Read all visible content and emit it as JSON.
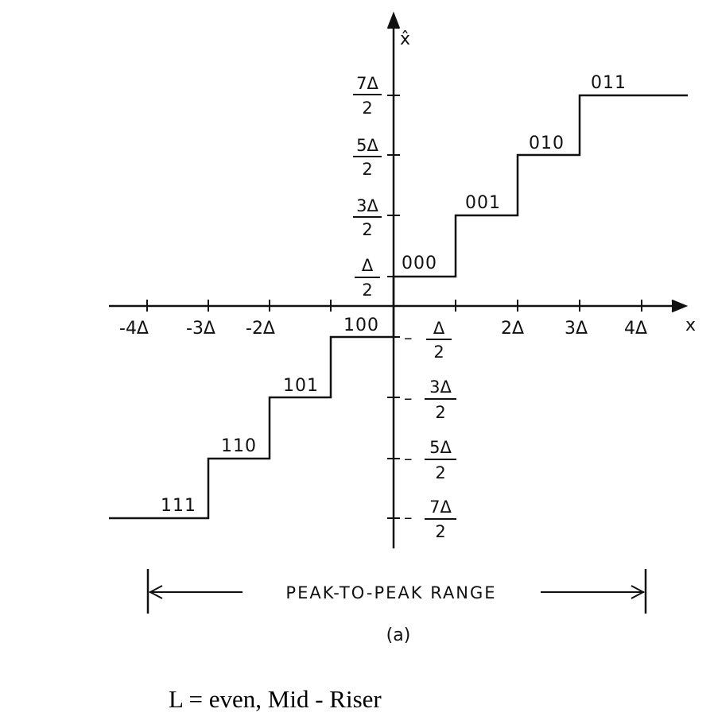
{
  "axes": {
    "y_label": "x̂",
    "x_label": "x"
  },
  "x_ticks": [
    "-4Δ",
    "-3Δ",
    "-2Δ",
    "2Δ",
    "3Δ",
    "4Δ"
  ],
  "y_ticks_positive": [
    {
      "num": "7Δ",
      "den": "2"
    },
    {
      "num": "5Δ",
      "den": "2"
    },
    {
      "num": "3Δ",
      "den": "2"
    },
    {
      "num": "Δ",
      "den": "2"
    }
  ],
  "y_ticks_negative": [
    {
      "sign": "–",
      "num": "Δ",
      "den": "2"
    },
    {
      "sign": "–",
      "num": "3Δ",
      "den": "2"
    },
    {
      "sign": "–",
      "num": "5Δ",
      "den": "2"
    },
    {
      "sign": "–",
      "num": "7Δ",
      "den": "2"
    }
  ],
  "codes": {
    "c000": "000",
    "c001": "001",
    "c010": "010",
    "c011": "011",
    "c100": "100",
    "c101": "101",
    "c110": "110",
    "c111": "111"
  },
  "range_label": "PEAK-TO-PEAK RANGE",
  "subfigure_label": "(a)",
  "caption": "L = even, Mid - Riser"
}
